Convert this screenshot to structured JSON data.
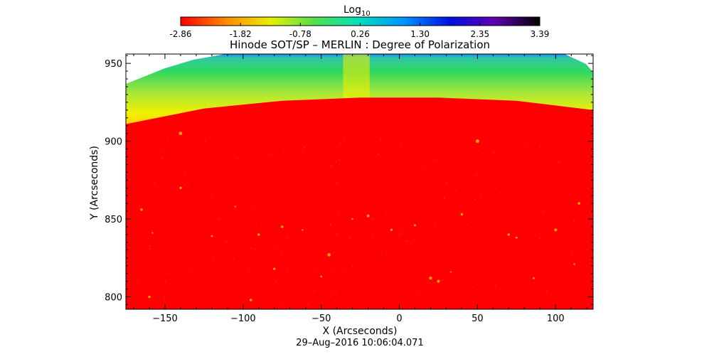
{
  "colorbar": {
    "label": "Log",
    "label_sub": "10",
    "ticks": [
      "-2.86",
      "-1.82",
      "-0.78",
      "0.26",
      "1.30",
      "2.35",
      "3.39"
    ],
    "range": [
      -2.86,
      3.39
    ],
    "colors": [
      "#ff0000",
      "#ff8800",
      "#e8f000",
      "#50e050",
      "#00e0c0",
      "#0090ff",
      "#0010e0",
      "#6000b0",
      "#000000"
    ]
  },
  "chart_data": {
    "type": "heatmap",
    "title": "Hinode SOT/SP – MERLIN : Degree of Polarization",
    "xlabel": "X (Arcseconds)",
    "ylabel": "Y (Arcseconds)",
    "xlim": [
      -175,
      124
    ],
    "ylim": [
      792,
      956
    ],
    "xticks": [
      -150,
      -100,
      -50,
      0,
      50,
      100
    ],
    "yticks": [
      800,
      850,
      900,
      950
    ],
    "limb_y": [
      {
        "x": -175,
        "y": 911
      },
      {
        "x": -125,
        "y": 921
      },
      {
        "x": -75,
        "y": 926
      },
      {
        "x": -25,
        "y": 928
      },
      {
        "x": 25,
        "y": 928
      },
      {
        "x": 75,
        "y": 926
      },
      {
        "x": 124,
        "y": 920
      }
    ],
    "bright_stripe_x": [
      -36,
      -19
    ],
    "colormap_range": [
      -2.86,
      3.39
    ]
  },
  "footer": {
    "timestamp": "29–Aug–2016 10:06:04.071"
  }
}
